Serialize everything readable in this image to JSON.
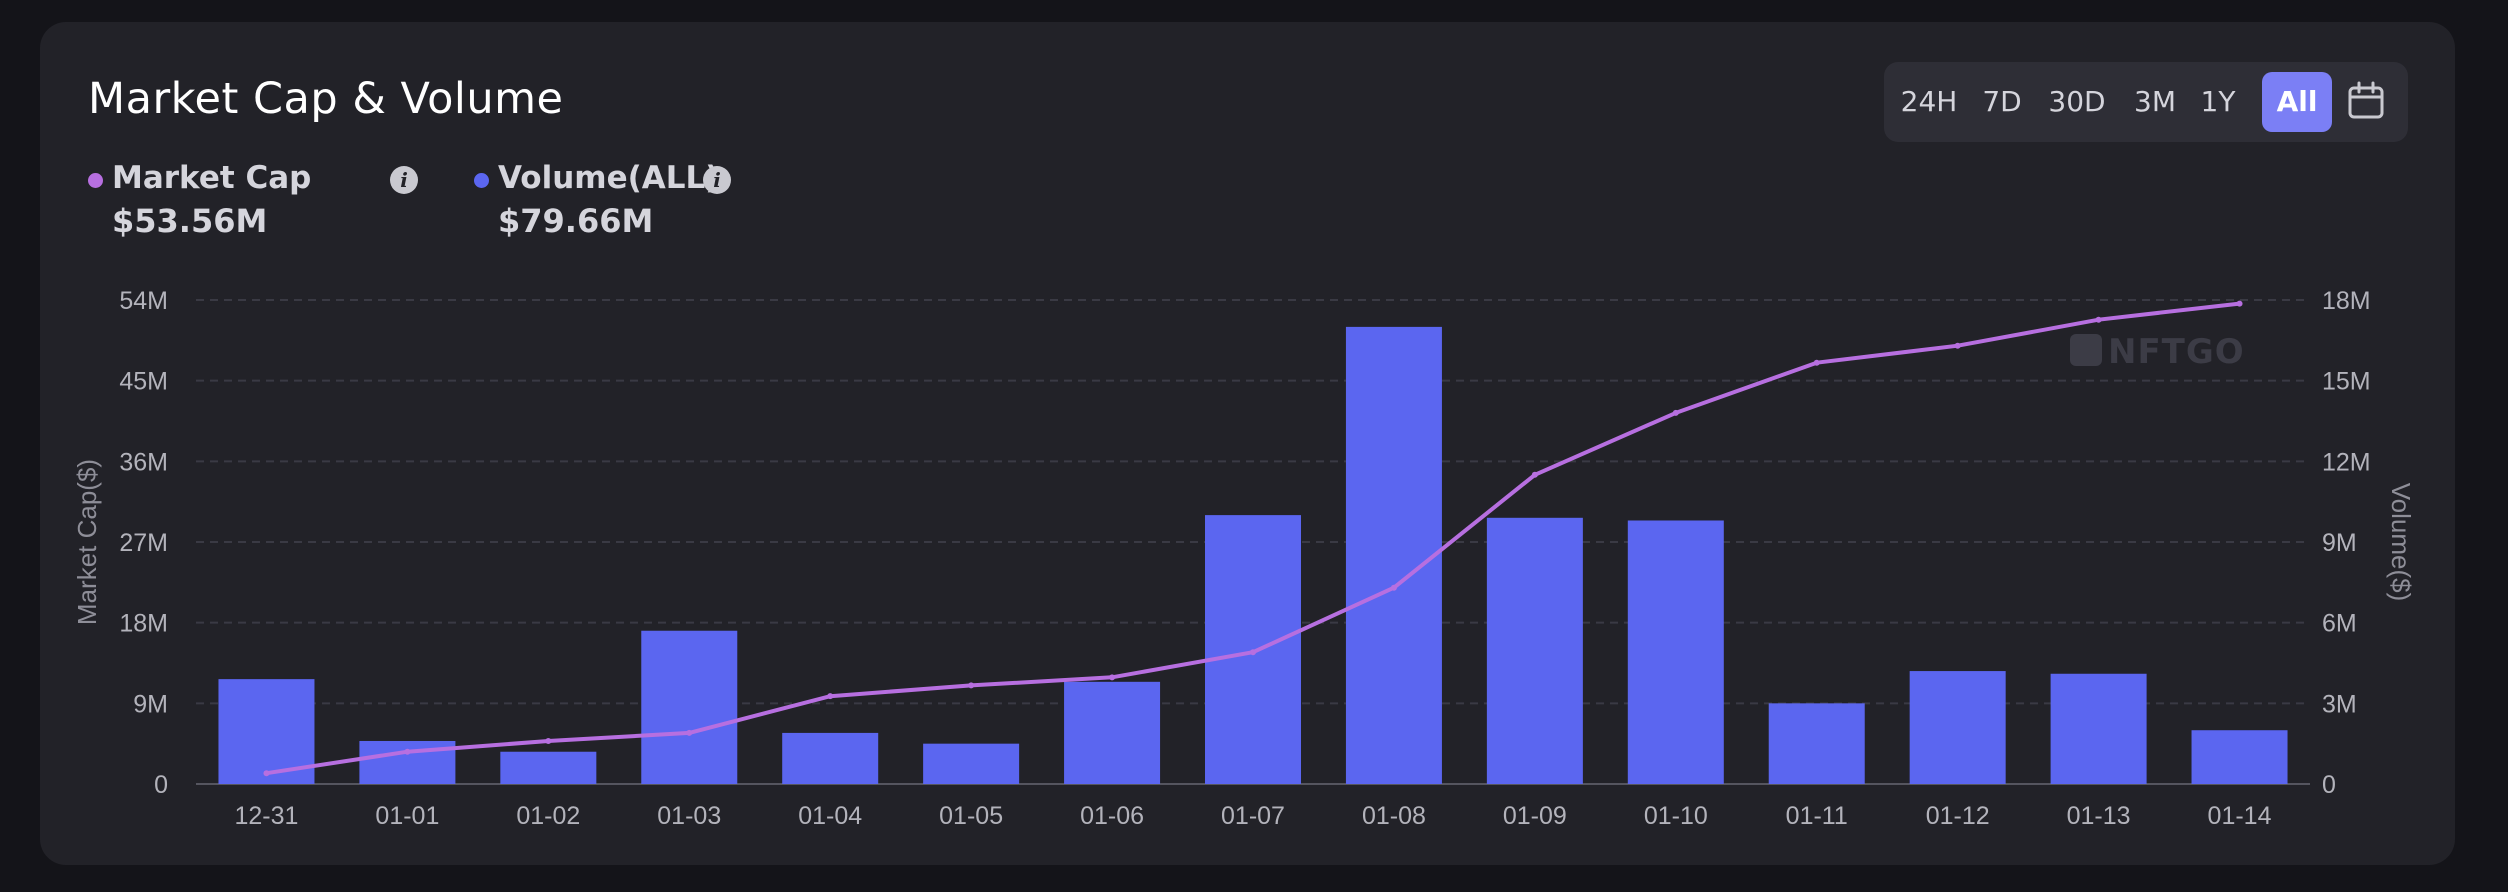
{
  "header": {
    "title": "Market Cap & Volume",
    "legend": [
      {
        "label": "Market Cap",
        "value": "$53.56M",
        "color": "#b76fe0",
        "info_icon": "info-icon"
      },
      {
        "label": "Volume(ALL)",
        "value": "$79.66M",
        "color": "#5b66f0",
        "info_icon": "info-icon"
      }
    ]
  },
  "range_selector": {
    "options": [
      "24H",
      "7D",
      "30D",
      "3M",
      "1Y",
      "All"
    ],
    "selected": "All",
    "calendar_icon": "calendar-icon"
  },
  "watermark": "NFTGO",
  "chart_data": {
    "type": "bar",
    "categories": [
      "12-31",
      "01-01",
      "01-02",
      "01-03",
      "01-04",
      "01-05",
      "01-06",
      "01-07",
      "01-08",
      "01-09",
      "01-10",
      "01-11",
      "01-12",
      "01-13",
      "01-14"
    ],
    "series": [
      {
        "name": "Volume(ALL)",
        "type": "bar",
        "axis": "right",
        "color": "#5b66f0",
        "values": [
          3.9,
          1.6,
          1.2,
          5.7,
          1.9,
          1.5,
          3.8,
          10.0,
          17.0,
          9.9,
          9.8,
          3.0,
          4.2,
          4.1,
          2.0
        ]
      },
      {
        "name": "Market Cap",
        "type": "line",
        "axis": "left",
        "color": "#b76fe0",
        "values": [
          1.2,
          3.6,
          4.8,
          5.7,
          9.8,
          11.0,
          11.9,
          14.7,
          21.9,
          34.5,
          41.4,
          47.0,
          48.9,
          51.8,
          53.6
        ]
      }
    ],
    "ylabel_left": "Market Cap($)",
    "ylabel_right": "Volume($)",
    "ylim_left": [
      0,
      54
    ],
    "ylim_right": [
      0,
      18
    ],
    "yticks_left": [
      "0",
      "9M",
      "18M",
      "27M",
      "36M",
      "45M",
      "54M"
    ],
    "yticks_right": [
      "0",
      "3M",
      "6M",
      "9M",
      "12M",
      "15M",
      "18M"
    ],
    "units": "millions",
    "grid": "horizontal dashed"
  }
}
